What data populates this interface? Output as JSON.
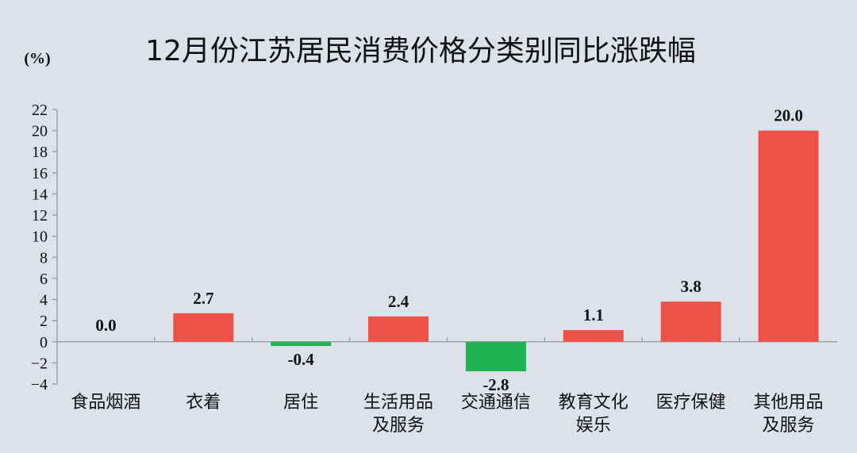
{
  "chart_data": {
    "type": "bar",
    "title": "12月份江苏居民消费价格分类别同比涨跌幅",
    "unit_label": "(%)",
    "categories": [
      [
        "食品烟酒"
      ],
      [
        "衣着"
      ],
      [
        "居住"
      ],
      [
        "生活用品",
        "及服务"
      ],
      [
        "交通通信"
      ],
      [
        "教育文化",
        "娱乐"
      ],
      [
        "医疗保健"
      ],
      [
        "其他用品",
        "及服务"
      ]
    ],
    "values": [
      0.0,
      2.7,
      -0.4,
      2.4,
      -2.8,
      1.1,
      3.8,
      20.0
    ],
    "value_labels": [
      "0.0",
      "2.7",
      "-0.4",
      "2.4",
      "-2.8",
      "1.1",
      "3.8",
      "20.0"
    ],
    "ylim": [
      -4,
      22
    ],
    "yticks": [
      22,
      20,
      18,
      16,
      14,
      12,
      10,
      8,
      6,
      4,
      2,
      0,
      -2,
      -4
    ],
    "ytick_labels": [
      "22",
      "20",
      "18",
      "16",
      "14",
      "12",
      "10",
      "8",
      "6",
      "4",
      "2",
      "0",
      "−2",
      "−4"
    ],
    "grid": false,
    "colors": {
      "positive": "#ef5146",
      "negative": "#21b254",
      "axis": "#9ea3ab",
      "background": "#dde1ea"
    }
  }
}
